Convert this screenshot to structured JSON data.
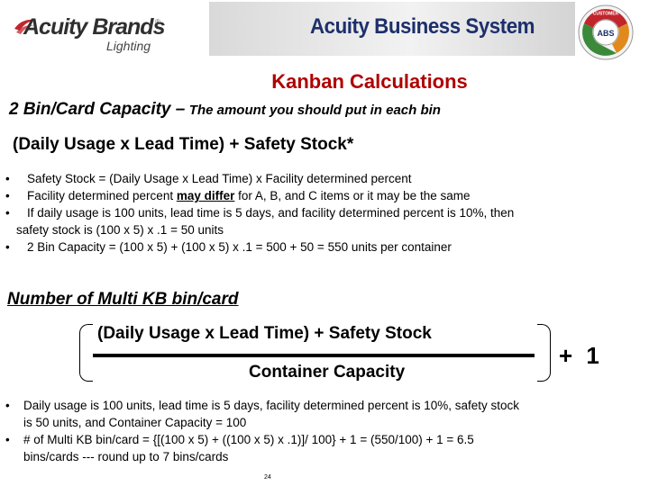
{
  "header": {
    "logo_brand": "Acuity Brands",
    "logo_tm": "®",
    "logo_sub": "Lighting",
    "banner_title": "Acuity Business System",
    "seal_text_top": "CUSTOMER",
    "seal_text_center": "ABS",
    "colors": {
      "banner_title": "#1d2f6b",
      "seal_green": "#3a8a3a",
      "seal_orange": "#e08a1e",
      "seal_red": "#c0262c"
    }
  },
  "title": "Kanban Calculations",
  "capacity": {
    "label": "2 Bin/Card Capacity –",
    "description": "The amount you should put in each bin",
    "formula": "(Daily Usage x Lead Time) + Safety Stock*"
  },
  "bullets": [
    {
      "text": "Safety Stock = (Daily Usage x Lead Time) x Facility determined percent"
    },
    {
      "before": "Facility determined percent ",
      "emph": "may differ",
      "after": " for A, B, and C items or it may be the same"
    },
    {
      "line1": "If daily usage is 100 units, lead time is 5 days, and facility determined percent is 10%, then",
      "line2": "safety stock is (100 x 5) x .1 = 50 units"
    },
    {
      "text": "2 Bin Capacity = (100 x  5) + (100 x 5) x .1 = 500 + 50 = 550 units per container"
    }
  ],
  "multi": {
    "heading": "Number of Multi KB bin/card",
    "numerator": "(Daily Usage x Lead Time) + Safety Stock",
    "denominator": "Container Capacity",
    "plus_one": "+ 1"
  },
  "bullets2": [
    {
      "line1": "Daily usage is 100 units, lead time is 5 days, facility determined percent is 10%, safety stock",
      "line2": "is 50 units, and Container Capacity = 100"
    },
    {
      "line1": "# of Multi KB bin/card  = {[(100 x  5) + ((100 x 5) x .1)]/ 100} + 1 = (550/100) + 1 = 6.5",
      "line2": "bins/cards --- round up to 7 bins/cards"
    }
  ],
  "page_number": "24"
}
